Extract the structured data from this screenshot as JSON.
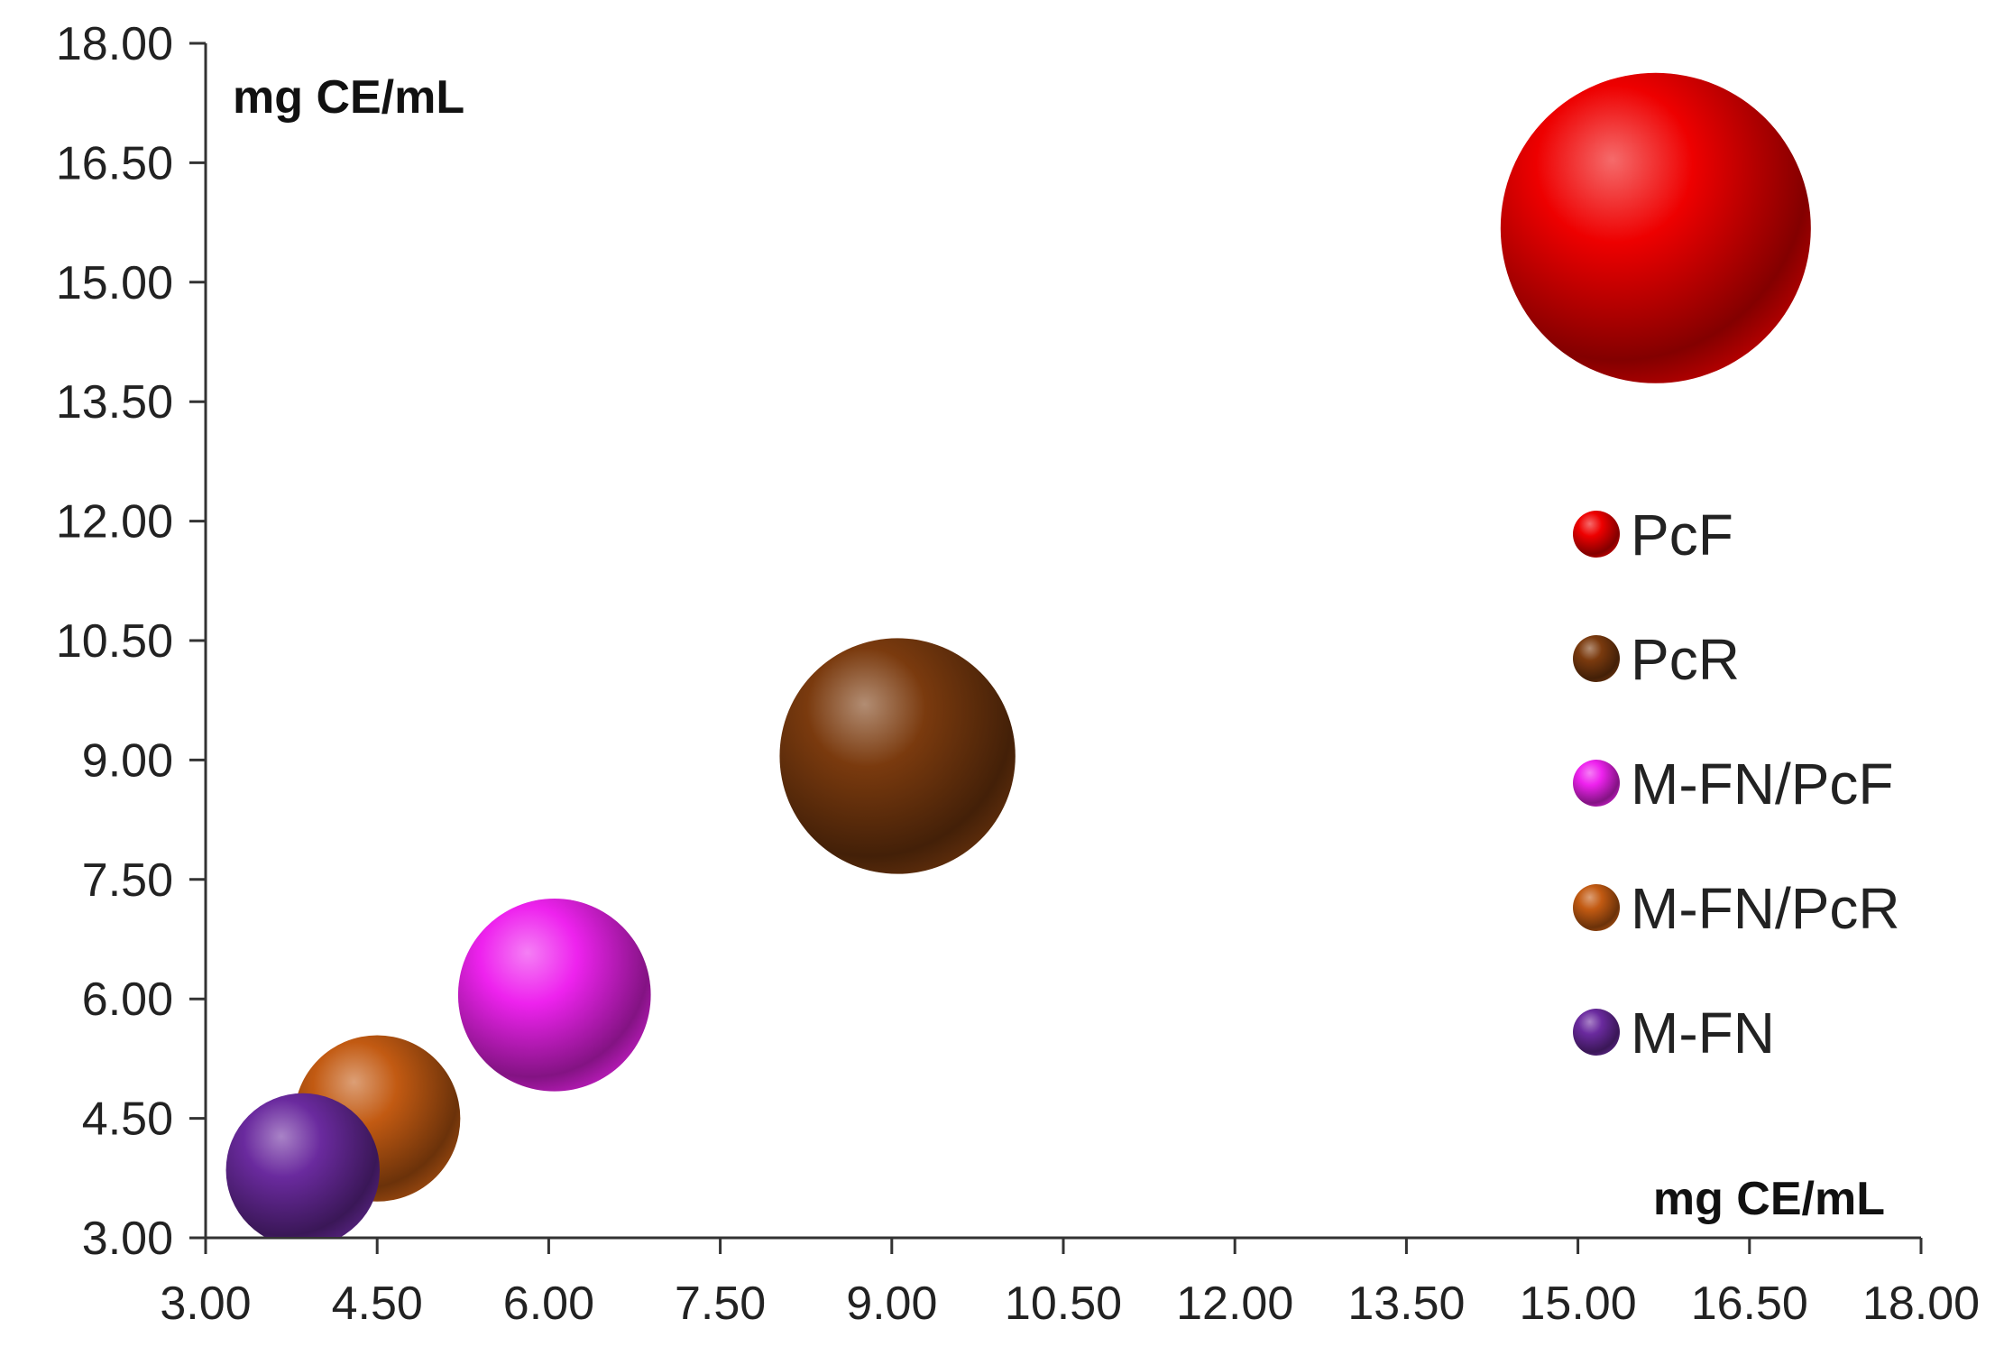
{
  "chart_data": {
    "type": "scatter",
    "title": "",
    "xlabel": "mg CE/mL",
    "ylabel": "mg CE/mL",
    "xlim": [
      3,
      18
    ],
    "ylim": [
      3,
      18
    ],
    "x_ticks": [
      "3.00",
      "4.50",
      "6.00",
      "7.50",
      "9.00",
      "10.50",
      "12.00",
      "13.50",
      "15.00",
      "16.50",
      "18.00"
    ],
    "y_ticks": [
      "3.00",
      "4.50",
      "6.00",
      "7.50",
      "9.00",
      "10.50",
      "12.00",
      "13.50",
      "15.00",
      "16.50",
      "18.00"
    ],
    "grid": false,
    "legend_position": "right",
    "bubble_area_scale": "proportional to value",
    "series": [
      {
        "name": "PcF",
        "x": 15.68,
        "y": 15.68,
        "size": 15.68,
        "color": "#ee0000"
      },
      {
        "name": "PcR",
        "x": 9.05,
        "y": 9.05,
        "size": 9.05,
        "color": "#7a3a0e"
      },
      {
        "name": "M-FN/PcF",
        "x": 6.05,
        "y": 6.05,
        "size": 6.05,
        "color": "#ee22ee"
      },
      {
        "name": "M-FN/PcR",
        "x": 4.5,
        "y": 4.5,
        "size": 4.5,
        "color": "#c25a12"
      },
      {
        "name": "M-FN",
        "x": 3.85,
        "y": 3.85,
        "size": 3.85,
        "color": "#6a2a9e"
      }
    ]
  }
}
